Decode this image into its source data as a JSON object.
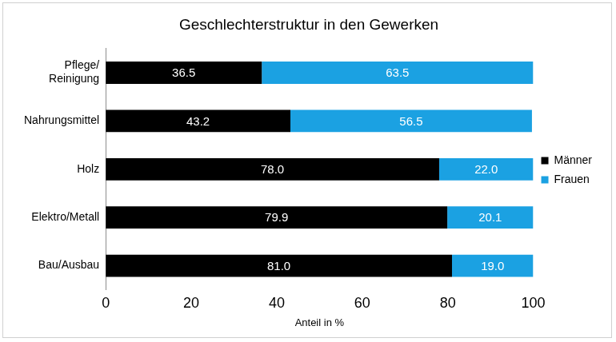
{
  "chart_data": {
    "type": "bar",
    "orientation": "horizontal",
    "stacked": true,
    "title": "Geschlechterstruktur in den Gewerken",
    "x_label": "Anteil in %",
    "categories": [
      "Pflege/\nReinigung",
      "Nahrungsmittel",
      "Holz",
      "Elektro/Metall",
      "Bau/Ausbau"
    ],
    "series": [
      {
        "name": "Männer",
        "color": "#000000",
        "values": [
          36.5,
          43.2,
          78.0,
          79.9,
          81.0
        ],
        "value_labels": [
          "36.5",
          "43.2",
          "78.0",
          "79.9",
          "81.0"
        ]
      },
      {
        "name": "Frauen",
        "color": "#1ba1e2",
        "values": [
          63.5,
          56.5,
          22.0,
          20.1,
          19.0
        ],
        "value_labels": [
          "63.5",
          "56.5",
          "22.0",
          "20.1",
          "19.0"
        ]
      }
    ],
    "xlim": [
      0,
      100
    ],
    "xticks": [
      0,
      20,
      40,
      60,
      80,
      100
    ],
    "grid": false,
    "legend": "right",
    "data_labels": true
  }
}
